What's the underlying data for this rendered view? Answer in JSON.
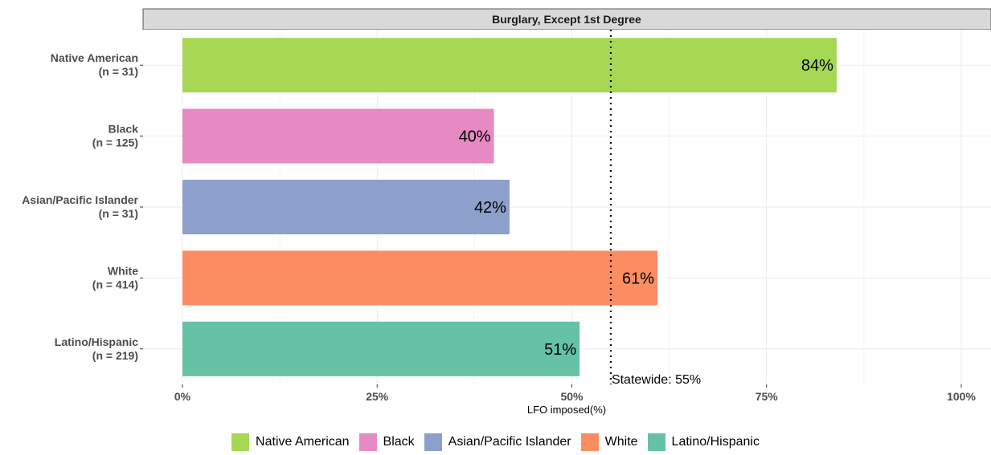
{
  "chart_data": {
    "type": "bar",
    "orientation": "horizontal",
    "title": "",
    "facet_title": "Burglary, Except 1st Degree",
    "xlabel": "LFO imposed(%)",
    "ylabel": "",
    "xlim": [
      0,
      100
    ],
    "x_ticks": [
      0,
      25,
      50,
      75,
      100
    ],
    "x_tick_labels": [
      "0%",
      "25%",
      "50%",
      "75%",
      "100%"
    ],
    "grid": true,
    "legend_position": "bottom",
    "categories": [
      {
        "label": "Native American",
        "n_label": "(n = 31)",
        "value": 84,
        "value_label": "84%",
        "color": "#a6d854"
      },
      {
        "label": "Black",
        "n_label": "(n = 125)",
        "value": 40,
        "value_label": "40%",
        "color": "#e78ac3"
      },
      {
        "label": "Asian/Pacific Islander",
        "n_label": "(n = 31)",
        "value": 42,
        "value_label": "42%",
        "color": "#8da0cb"
      },
      {
        "label": "White",
        "n_label": "(n = 414)",
        "value": 61,
        "value_label": "61%",
        "color": "#fc8d62"
      },
      {
        "label": "Latino/Hispanic",
        "n_label": "(n = 219)",
        "value": 51,
        "value_label": "51%",
        "color": "#66c2a5"
      }
    ],
    "reference_line": {
      "value": 55,
      "label": "Statewide: 55%"
    },
    "legend": [
      {
        "label": "Native American",
        "color": "#a6d854"
      },
      {
        "label": "Black",
        "color": "#e78ac3"
      },
      {
        "label": "Asian/Pacific Islander",
        "color": "#8da0cb"
      },
      {
        "label": "White",
        "color": "#fc8d62"
      },
      {
        "label": "Latino/Hispanic",
        "color": "#66c2a5"
      }
    ]
  }
}
